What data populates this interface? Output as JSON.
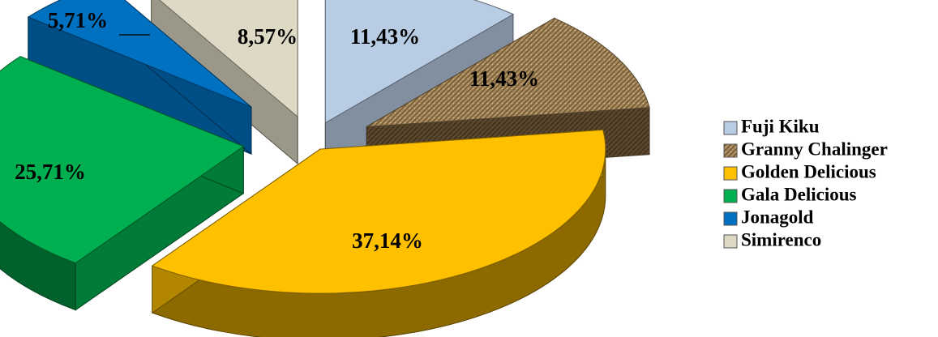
{
  "chart_data": {
    "type": "pie",
    "title": "",
    "categories": [
      "Fuji Kiku",
      "Granny Chalinger",
      "Golden Delicious",
      "Gala Delicious",
      "Jonagold",
      "Simirenco"
    ],
    "values": [
      11.43,
      11.43,
      37.14,
      25.71,
      5.71,
      8.57
    ],
    "labels": [
      "11,43%",
      "11,43%",
      "37,14%",
      "25,71%",
      "5,71%",
      "8,57%"
    ],
    "colors": [
      "#b8cce4",
      "#a88a5c",
      "#ffc000",
      "#00b050",
      "#0070c0",
      "#ddd9c4"
    ],
    "legend": {
      "placement": "right",
      "entries": [
        "Fuji Kiku",
        "Granny Chalinger",
        "Golden Delicious",
        "Gala Delicious",
        "Jonagold",
        "Simirenco"
      ]
    }
  }
}
